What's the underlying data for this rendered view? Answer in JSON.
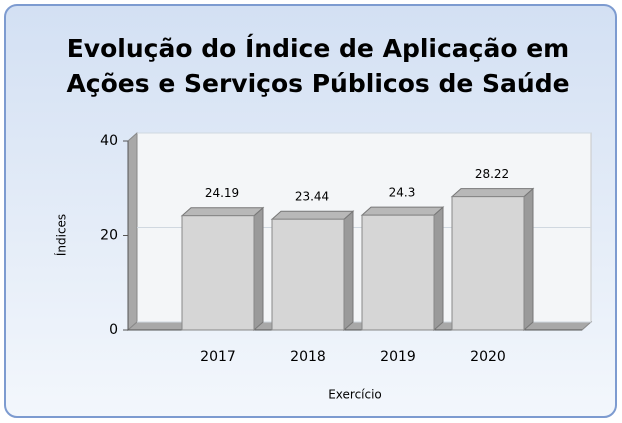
{
  "chart_data": {
    "type": "bar",
    "title": "Evolução do Índice de Aplicação em",
    "subtitle": "Ações e Serviços Públicos de Saúde",
    "categories": [
      "2017",
      "2018",
      "2019",
      "2020"
    ],
    "values": [
      24.19,
      23.44,
      24.3,
      28.22
    ],
    "color": "#d6d6d6",
    "ylim": [
      0,
      40
    ],
    "yticks": [
      0,
      20,
      40
    ],
    "grid": true,
    "x_label": "Exercício",
    "y_label": "Índices"
  }
}
